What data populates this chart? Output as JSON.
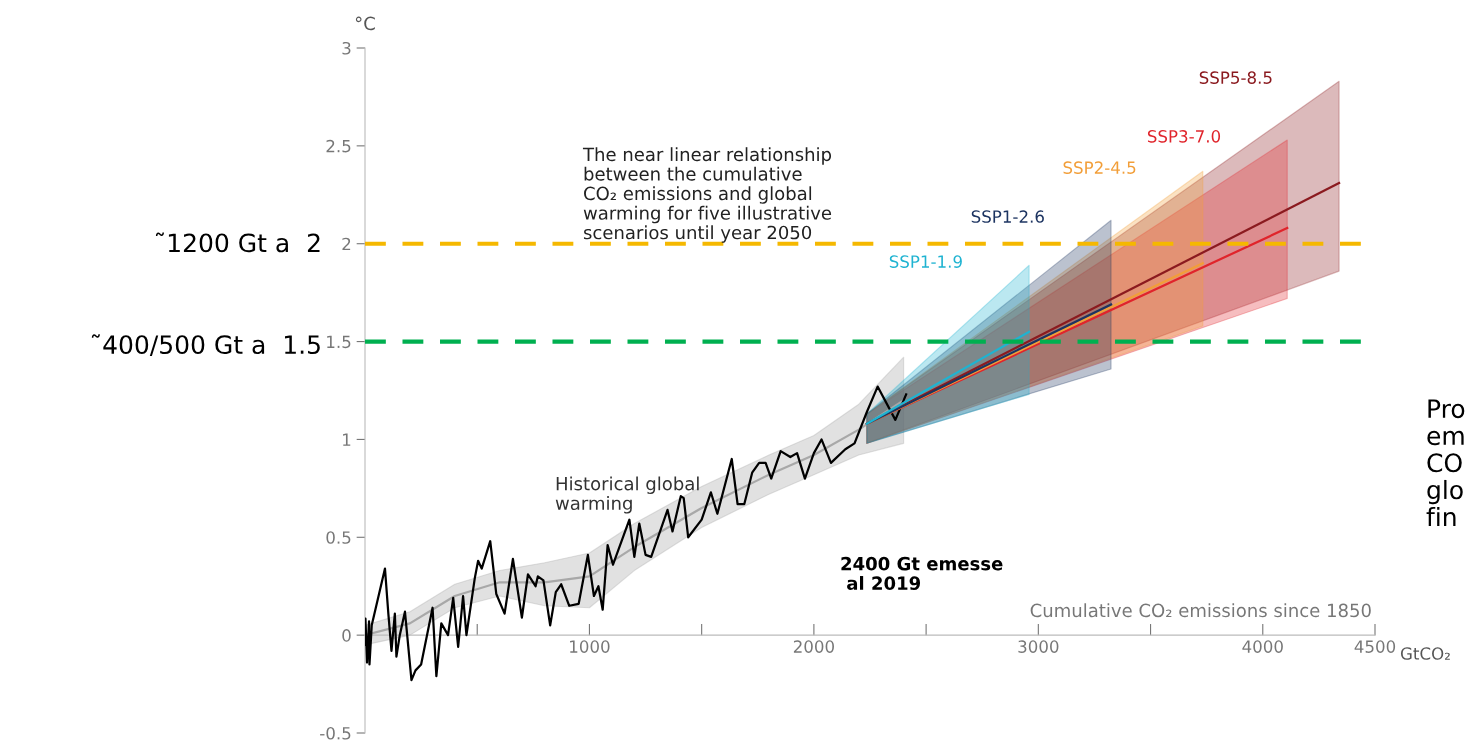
{
  "chart_data": {
    "type": "line",
    "xlabel": "GtCO₂",
    "ylabel": "°C",
    "xlim": [
      0,
      4500
    ],
    "ylim": [
      -0.5,
      3
    ],
    "xticks": [
      {
        "value": 500,
        "label": null
      },
      1000,
      {
        "value": 1500,
        "label": null
      },
      2000,
      {
        "value": 2500,
        "label": null
      },
      3000,
      {
        "value": 3500,
        "label": null
      },
      4000,
      4500
    ],
    "yticks": [
      -0.5,
      0,
      0.5,
      1,
      1.5,
      2,
      2.5,
      3
    ],
    "grid": false,
    "legend": false,
    "series": [
      {
        "color": "#a8a8a8",
        "x": [
          0,
          200,
          400,
          600,
          800,
          1000,
          1200,
          1500,
          1800,
          2000,
          2200,
          2400
        ],
        "values": [
          0.0,
          0.06,
          0.2,
          0.27,
          0.27,
          0.3,
          0.45,
          0.65,
          0.82,
          0.92,
          1.05,
          1.2
        ],
        "lower": [
          -0.05,
          0.0,
          0.14,
          0.2,
          0.15,
          0.14,
          0.33,
          0.55,
          0.72,
          0.82,
          0.92,
          0.98
        ],
        "upper": [
          0.05,
          0.12,
          0.26,
          0.33,
          0.37,
          0.42,
          0.57,
          0.76,
          0.92,
          1.02,
          1.18,
          1.42
        ]
      },
      {
        "color": "#000000",
        "x": [
          0,
          2,
          9,
          18,
          20,
          30,
          89,
          104,
          118,
          133,
          140,
          155,
          178,
          207,
          225,
          250,
          301,
          318,
          340,
          370,
          393,
          415,
          437,
          452,
          489,
          504,
          520,
          558,
          585,
          622,
          659,
          699,
          726,
          760,
          770,
          795,
          825,
          850,
          874,
          910,
          952,
          993,
          1020,
          1040,
          1059,
          1081,
          1105,
          1178,
          1200,
          1222,
          1250,
          1275,
          1348,
          1370,
          1407,
          1420,
          1440,
          1500,
          1541,
          1570,
          1634,
          1660,
          1690,
          1725,
          1756,
          1785,
          1810,
          1852,
          1895,
          1925,
          1960,
          2000,
          2034,
          2076,
          2140,
          2181,
          2236,
          2284,
          2363,
          2411
        ],
        "values": [
          -0.05,
          0.085,
          -0.14,
          0.07,
          -0.15,
          0.05,
          0.34,
          0.11,
          -0.08,
          0.11,
          -0.11,
          0.0,
          0.12,
          -0.23,
          -0.18,
          -0.15,
          0.14,
          -0.21,
          0.06,
          0.0,
          0.19,
          -0.06,
          0.2,
          0.0,
          0.29,
          0.38,
          0.34,
          0.48,
          0.21,
          0.11,
          0.39,
          0.09,
          0.31,
          0.25,
          0.3,
          0.28,
          0.05,
          0.22,
          0.26,
          0.15,
          0.16,
          0.41,
          0.2,
          0.25,
          0.13,
          0.46,
          0.36,
          0.59,
          0.4,
          0.57,
          0.41,
          0.4,
          0.64,
          0.53,
          0.71,
          0.7,
          0.5,
          0.59,
          0.73,
          0.62,
          0.9,
          0.67,
          0.67,
          0.83,
          0.88,
          0.88,
          0.8,
          0.94,
          0.91,
          0.93,
          0.8,
          0.93,
          1.0,
          0.88,
          0.95,
          0.98,
          1.14,
          1.27,
          1.1,
          1.23
        ]
      },
      {
        "name": "SSP5-8.5",
        "color": "#8b1a1f",
        "x": [
          2236,
          4340
        ],
        "values": [
          1.08,
          2.31
        ],
        "lower": [
          0.98,
          1.86
        ],
        "upper": [
          1.13,
          2.83
        ]
      },
      {
        "name": "SSP3-7.0",
        "color": "#e0242b",
        "x": [
          2236,
          4109
        ],
        "values": [
          1.08,
          2.08
        ],
        "lower": [
          0.98,
          1.72
        ],
        "upper": [
          1.13,
          2.53
        ]
      },
      {
        "name": "SSP2-4.5",
        "color": "#f29e38",
        "x": [
          2236,
          3733
        ],
        "values": [
          1.08,
          1.9
        ],
        "lower": [
          0.98,
          1.58
        ],
        "upper": [
          1.13,
          2.37
        ]
      },
      {
        "name": "SSP1-2.6",
        "color": "#1d3461",
        "x": [
          2236,
          3324
        ],
        "values": [
          1.08,
          1.69
        ],
        "lower": [
          0.98,
          1.36
        ],
        "upper": [
          1.13,
          2.12
        ]
      },
      {
        "name": "SSP1-1.9",
        "color": "#1fb3d1",
        "x": [
          2236,
          2959
        ],
        "values": [
          1.08,
          1.55
        ],
        "lower": [
          0.98,
          1.23
        ],
        "upper": [
          1.13,
          1.89
        ]
      }
    ],
    "ref_lines": [
      {
        "axis": "y",
        "value": 2,
        "label": "˜1200 Gt a  2",
        "color": "#f5b800",
        "line_style": "dashed"
      },
      {
        "axis": "y",
        "value": 1.5,
        "label": "˜400/500 Gt a  1.5",
        "color": "#00b050",
        "line_style": "dashed"
      }
    ],
    "annotations": [
      "The near linear relationship\nbetween the cumulative\nCO₂ emissions and global\nwarming for five illustrative\nscenarios until year 2050",
      "Historical global\nwarming",
      "2400 Gt emesse\n al 2019",
      "Cumulative CO₂ emissions since 1850",
      "Pro\nem\nCO\nglo\nfin"
    ]
  }
}
